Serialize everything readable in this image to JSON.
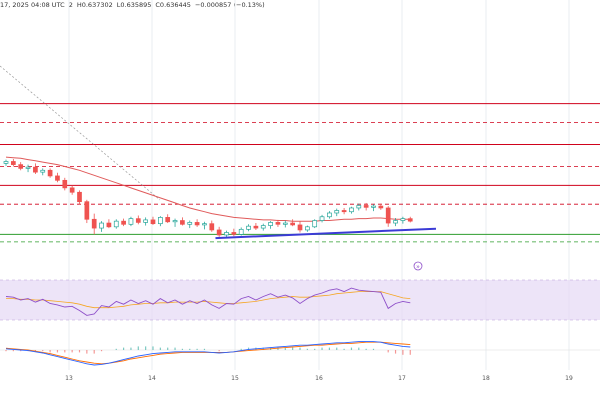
{
  "header": {
    "date_fragment": "17, 2025 04:08 UTC",
    "ohlc_prefix": "2",
    "high": "H0.637302",
    "low": "L0.635895",
    "close": "C0.636445",
    "change": "−0.000857 (−0.13%)"
  },
  "colors": {
    "up": "#26a69a",
    "down": "#ef5350",
    "candle_body_up": "#ffffff",
    "wick": "#444444",
    "ma": "#e05a5a",
    "trendline": "#3b3bd6",
    "resistance": "#d0021b",
    "support": "#2e9d2e",
    "rsi_band": "#e6d8f5",
    "rsi_line": "#8e4fc9",
    "rsi_ma": "#f5a623",
    "macd_line": "#2962ff",
    "macd_signal": "#ff6d00",
    "grid": "#e9ecf0"
  },
  "x_axis": {
    "ticks": [
      "13",
      "14",
      "15",
      "16",
      "17",
      "18",
      "19"
    ]
  },
  "price_levels": {
    "solid_red": [
      0.66,
      0.6535,
      0.647
    ],
    "dashed_red": [
      0.657,
      0.65,
      0.644
    ],
    "solid_green": 0.6392,
    "dashed_green": 0.638
  },
  "chart_data": {
    "type": "line",
    "title": "",
    "xlabel": "",
    "ylabel": "",
    "x_ticks": [
      "13",
      "14",
      "15",
      "16",
      "17",
      "18",
      "19"
    ],
    "ylim": [
      0.6348,
      0.6765
    ],
    "candles": [
      [
        0.6505,
        0.6511,
        0.6501,
        0.6508
      ],
      [
        0.6508,
        0.6512,
        0.65,
        0.6503
      ],
      [
        0.6503,
        0.6507,
        0.6494,
        0.6497
      ],
      [
        0.6497,
        0.6503,
        0.6491,
        0.6499
      ],
      [
        0.6499,
        0.6505,
        0.6488,
        0.6491
      ],
      [
        0.6491,
        0.6497,
        0.6486,
        0.6494
      ],
      [
        0.6494,
        0.6497,
        0.6482,
        0.6485
      ],
      [
        0.6485,
        0.649,
        0.6475,
        0.6478
      ],
      [
        0.6478,
        0.6482,
        0.6462,
        0.6466
      ],
      [
        0.6466,
        0.647,
        0.6455,
        0.6459
      ],
      [
        0.6459,
        0.6462,
        0.644,
        0.6444
      ],
      [
        0.6444,
        0.6447,
        0.641,
        0.6416
      ],
      [
        0.6416,
        0.6425,
        0.6392,
        0.6402
      ],
      [
        0.6402,
        0.6413,
        0.6396,
        0.641
      ],
      [
        0.641,
        0.6416,
        0.6402,
        0.6404
      ],
      [
        0.6404,
        0.6416,
        0.6401,
        0.6413
      ],
      [
        0.6413,
        0.6417,
        0.6405,
        0.6408
      ],
      [
        0.6408,
        0.642,
        0.6405,
        0.6417
      ],
      [
        0.6417,
        0.6422,
        0.6408,
        0.6411
      ],
      [
        0.6411,
        0.6419,
        0.6406,
        0.6415
      ],
      [
        0.6415,
        0.642,
        0.6407,
        0.6409
      ],
      [
        0.6409,
        0.6421,
        0.6405,
        0.6419
      ],
      [
        0.6419,
        0.6424,
        0.641,
        0.6412
      ],
      [
        0.6412,
        0.6417,
        0.6404,
        0.6414
      ],
      [
        0.6414,
        0.6419,
        0.6406,
        0.6408
      ],
      [
        0.6408,
        0.6414,
        0.6402,
        0.6411
      ],
      [
        0.6411,
        0.6416,
        0.6404,
        0.6407
      ],
      [
        0.6407,
        0.6412,
        0.64,
        0.6409
      ],
      [
        0.6409,
        0.6414,
        0.6396,
        0.6399
      ],
      [
        0.6399,
        0.6404,
        0.6388,
        0.6391
      ],
      [
        0.6391,
        0.6398,
        0.6387,
        0.6395
      ],
      [
        0.6395,
        0.6401,
        0.6389,
        0.6392
      ],
      [
        0.6392,
        0.6403,
        0.639,
        0.64
      ],
      [
        0.64,
        0.6408,
        0.6397,
        0.6405
      ],
      [
        0.6405,
        0.641,
        0.6399,
        0.6402
      ],
      [
        0.6402,
        0.6409,
        0.6398,
        0.6406
      ],
      [
        0.6406,
        0.6413,
        0.6401,
        0.6411
      ],
      [
        0.6411,
        0.6415,
        0.6404,
        0.6408
      ],
      [
        0.6408,
        0.6414,
        0.6403,
        0.641
      ],
      [
        0.641,
        0.6416,
        0.6405,
        0.6407
      ],
      [
        0.6407,
        0.6413,
        0.6395,
        0.6399
      ],
      [
        0.6399,
        0.6406,
        0.6396,
        0.6404
      ],
      [
        0.6404,
        0.6416,
        0.6402,
        0.6414
      ],
      [
        0.6414,
        0.6423,
        0.6411,
        0.642
      ],
      [
        0.642,
        0.6429,
        0.6417,
        0.6426
      ],
      [
        0.6426,
        0.6433,
        0.6421,
        0.643
      ],
      [
        0.643,
        0.6434,
        0.6424,
        0.6428
      ],
      [
        0.6428,
        0.6436,
        0.6425,
        0.6434
      ],
      [
        0.6434,
        0.6441,
        0.643,
        0.6438
      ],
      [
        0.6438,
        0.6442,
        0.643,
        0.6435
      ],
      [
        0.6435,
        0.644,
        0.6429,
        0.6437
      ],
      [
        0.6437,
        0.6441,
        0.6431,
        0.6434
      ],
      [
        0.6434,
        0.6437,
        0.6404,
        0.641
      ],
      [
        0.641,
        0.6418,
        0.6405,
        0.6414
      ],
      [
        0.6414,
        0.642,
        0.6409,
        0.6417
      ],
      [
        0.6417,
        0.642,
        0.6411,
        0.6413
      ]
    ],
    "ma": [
      0.6515,
      0.6514,
      0.6513,
      0.6511,
      0.6509,
      0.6507,
      0.6505,
      0.6503,
      0.65,
      0.6497,
      0.6494,
      0.649,
      0.6486,
      0.6482,
      0.6478,
      0.6474,
      0.647,
      0.6466,
      0.6462,
      0.6458,
      0.6454,
      0.645,
      0.6446,
      0.6442,
      0.6438,
      0.6434,
      0.6431,
      0.6428,
      0.6425,
      0.6423,
      0.6421,
      0.6419,
      0.6418,
      0.6417,
      0.6416,
      0.6415,
      0.6415,
      0.6414,
      0.6414,
      0.6413,
      0.6413,
      0.6413,
      0.6413,
      0.6414,
      0.6414,
      0.6415,
      0.6416,
      0.6416,
      0.6417,
      0.6417,
      0.6418,
      0.6418,
      0.6417,
      0.6416,
      0.6416,
      0.6416
    ],
    "trendline": [
      [
        28.5,
        0.6386
      ],
      [
        58.5,
        0.6401
      ]
    ],
    "rsi": [
      55,
      54,
      50,
      52,
      47,
      51,
      45,
      43,
      40,
      41,
      35,
      28,
      30,
      42,
      40,
      48,
      44,
      50,
      45,
      49,
      44,
      52,
      46,
      50,
      44,
      49,
      45,
      50,
      43,
      38,
      45,
      44,
      52,
      55,
      50,
      55,
      59,
      54,
      57,
      53,
      45,
      52,
      57,
      60,
      64,
      66,
      62,
      67,
      64,
      63,
      62,
      61,
      38,
      45,
      48,
      46
    ],
    "rsi_ma": [
      52,
      52,
      51,
      51,
      50,
      50,
      49,
      48,
      47,
      46,
      44,
      41,
      39,
      39,
      39,
      40,
      41,
      43,
      44,
      45,
      45,
      46,
      46,
      47,
      47,
      47,
      47,
      48,
      47,
      46,
      45,
      45,
      46,
      47,
      48,
      50,
      52,
      53,
      54,
      55,
      54,
      54,
      55,
      56,
      57,
      59,
      60,
      61,
      62,
      62,
      62,
      62,
      59,
      56,
      53,
      52
    ],
    "macd": [
      0.2,
      0.1,
      0.0,
      -0.1,
      -0.3,
      -0.5,
      -0.8,
      -1.1,
      -1.4,
      -1.7,
      -2.0,
      -2.3,
      -2.5,
      -2.4,
      -2.2,
      -1.9,
      -1.6,
      -1.3,
      -1.0,
      -0.8,
      -0.6,
      -0.5,
      -0.4,
      -0.3,
      -0.3,
      -0.3,
      -0.3,
      -0.3,
      -0.4,
      -0.5,
      -0.4,
      -0.3,
      -0.1,
      0.1,
      0.2,
      0.3,
      0.4,
      0.5,
      0.6,
      0.7,
      0.8,
      0.8,
      0.9,
      1.0,
      1.1,
      1.2,
      1.2,
      1.3,
      1.4,
      1.4,
      1.4,
      1.3,
      1.0,
      0.8,
      0.6,
      0.5
    ],
    "macd_signal": [
      0.3,
      0.2,
      0.1,
      0.0,
      -0.2,
      -0.4,
      -0.6,
      -0.9,
      -1.2,
      -1.5,
      -1.8,
      -2.0,
      -2.2,
      -2.3,
      -2.2,
      -2.0,
      -1.8,
      -1.5,
      -1.3,
      -1.1,
      -0.9,
      -0.7,
      -0.6,
      -0.5,
      -0.4,
      -0.4,
      -0.4,
      -0.4,
      -0.4,
      -0.4,
      -0.4,
      -0.3,
      -0.2,
      -0.1,
      0.0,
      0.1,
      0.2,
      0.3,
      0.4,
      0.5,
      0.6,
      0.7,
      0.8,
      0.8,
      0.9,
      1.0,
      1.1,
      1.1,
      1.2,
      1.3,
      1.3,
      1.3,
      1.2,
      1.1,
      1.0,
      0.9
    ]
  }
}
